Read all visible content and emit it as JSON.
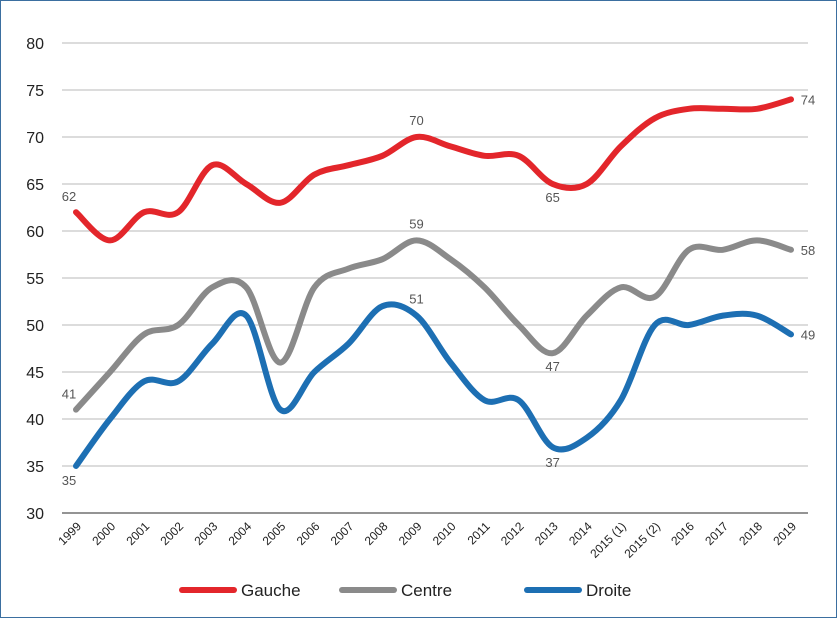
{
  "chart_data": {
    "type": "line",
    "title": "",
    "xlabel": "",
    "ylabel": "",
    "ylim": [
      30,
      80
    ],
    "yticks": [
      30,
      35,
      40,
      45,
      50,
      55,
      60,
      65,
      70,
      75,
      80
    ],
    "grid": true,
    "legend_position": "bottom",
    "categories": [
      "1999",
      "2000",
      "2001",
      "2002",
      "2003",
      "2004",
      "2005",
      "2006",
      "2007",
      "2008",
      "2009",
      "2010",
      "2011",
      "2012",
      "2013",
      "2014",
      "2015 (1)",
      "2015 (2)",
      "2016",
      "2017",
      "2018",
      "2019"
    ],
    "series": [
      {
        "name": "Gauche",
        "color": "#e3262b",
        "values": [
          62,
          59,
          62,
          62,
          67,
          65,
          63,
          66,
          67,
          68,
          70,
          69,
          68,
          68,
          65,
          65,
          69,
          72,
          73,
          73,
          73,
          74
        ],
        "labels": [
          {
            "index": 0,
            "text": "62"
          },
          {
            "index": 10,
            "text": "70"
          },
          {
            "index": 14,
            "text": "65"
          },
          {
            "index": 21,
            "text": "74"
          }
        ]
      },
      {
        "name": "Centre",
        "color": "#8a8a8a",
        "values": [
          41,
          45,
          49,
          50,
          54,
          54,
          46,
          54,
          56,
          57,
          59,
          57,
          54,
          50,
          47,
          51,
          54,
          53,
          58,
          58,
          59,
          58
        ],
        "labels": [
          {
            "index": 0,
            "text": "41"
          },
          {
            "index": 10,
            "text": "59"
          },
          {
            "index": 14,
            "text": "47"
          },
          {
            "index": 21,
            "text": "58"
          }
        ]
      },
      {
        "name": "Droite",
        "color": "#1d6fb3",
        "values": [
          35,
          40,
          44,
          44,
          48,
          51,
          41,
          45,
          48,
          52,
          51,
          46,
          42,
          42,
          37,
          38,
          42,
          50,
          50,
          51,
          51,
          49
        ],
        "labels": [
          {
            "index": 0,
            "text": "35"
          },
          {
            "index": 10,
            "text": "51"
          },
          {
            "index": 14,
            "text": "37"
          },
          {
            "index": 21,
            "text": "49"
          }
        ]
      }
    ]
  }
}
